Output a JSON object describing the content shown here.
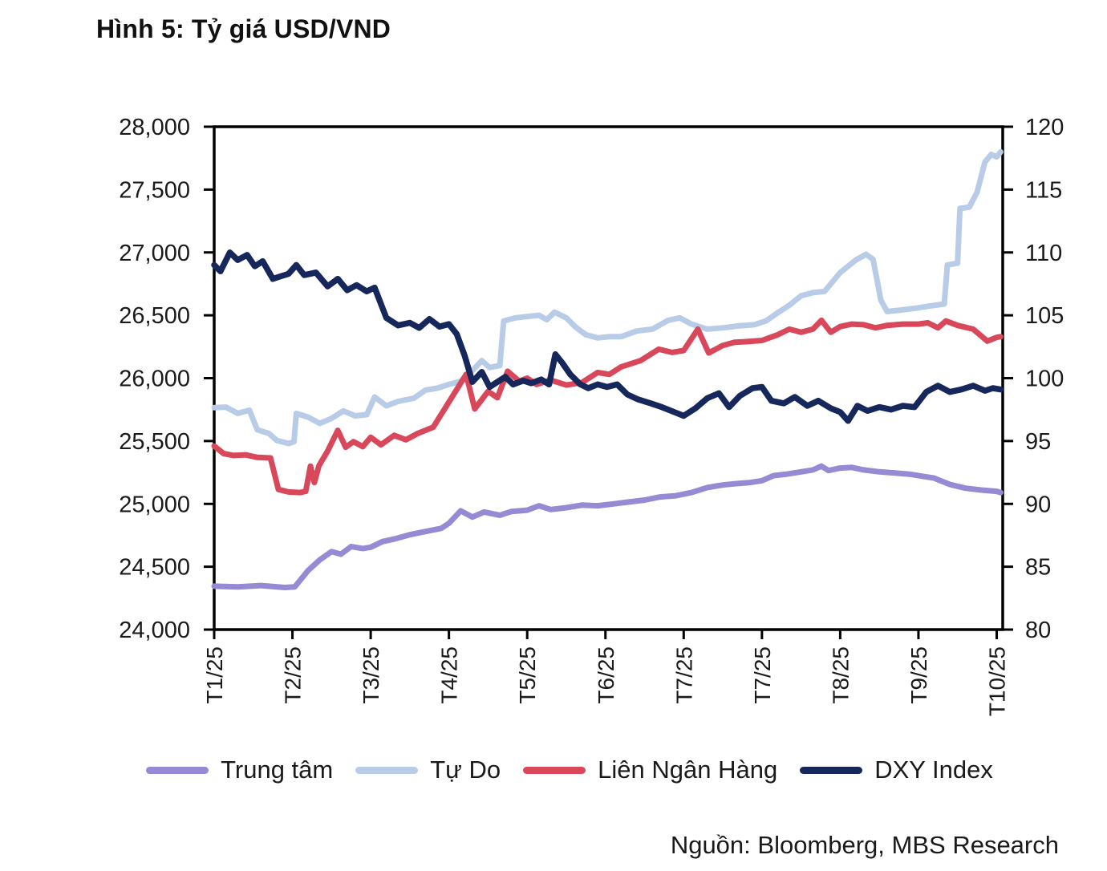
{
  "figure": {
    "title": "Hình 5: Tỷ giá USD/VND",
    "source": "Nguồn: Bloomberg, MBS Research"
  },
  "chart_data": {
    "type": "line",
    "title": "Hình 5: Tỷ giá USD/VND",
    "source": "Nguồn: Bloomberg, MBS Research",
    "grid": false,
    "legend_position": "bottom",
    "x_axis": {
      "tick_labels": [
        "T1/25",
        "T2/25",
        "T3/25",
        "T4/25",
        "T5/25",
        "T6/25",
        "T7/25",
        "T7/25",
        "T8/25",
        "T9/25",
        "T10/25"
      ]
    },
    "y_left": {
      "min": 24000,
      "max": 28000,
      "tick_step": 500,
      "unit": "VND"
    },
    "y_right": {
      "min": 80,
      "max": 120,
      "tick_step": 5,
      "unit": "index"
    },
    "series": [
      {
        "name": "Trung tâm",
        "axis": "left",
        "color": "#9789D3",
        "width": 7,
        "points": [
          [
            0,
            24345
          ],
          [
            0.3,
            24340
          ],
          [
            0.6,
            24350
          ],
          [
            0.9,
            24335
          ],
          [
            1.03,
            24340
          ],
          [
            1.2,
            24470
          ],
          [
            1.35,
            24555
          ],
          [
            1.5,
            24620
          ],
          [
            1.62,
            24600
          ],
          [
            1.75,
            24660
          ],
          [
            1.9,
            24645
          ],
          [
            2.0,
            24655
          ],
          [
            2.15,
            24700
          ],
          [
            2.3,
            24720
          ],
          [
            2.5,
            24755
          ],
          [
            2.7,
            24780
          ],
          [
            2.9,
            24805
          ],
          [
            3.0,
            24845
          ],
          [
            3.15,
            24945
          ],
          [
            3.3,
            24895
          ],
          [
            3.45,
            24935
          ],
          [
            3.65,
            24910
          ],
          [
            3.8,
            24940
          ],
          [
            4.0,
            24950
          ],
          [
            4.15,
            24985
          ],
          [
            4.3,
            24955
          ],
          [
            4.5,
            24970
          ],
          [
            4.7,
            24990
          ],
          [
            4.9,
            24985
          ],
          [
            5.1,
            25000
          ],
          [
            5.3,
            25015
          ],
          [
            5.5,
            25030
          ],
          [
            5.7,
            25055
          ],
          [
            5.9,
            25065
          ],
          [
            6.1,
            25090
          ],
          [
            6.3,
            25130
          ],
          [
            6.5,
            25150
          ],
          [
            6.65,
            25160
          ],
          [
            6.85,
            25170
          ],
          [
            7.0,
            25185
          ],
          [
            7.15,
            25225
          ],
          [
            7.3,
            25235
          ],
          [
            7.5,
            25255
          ],
          [
            7.65,
            25270
          ],
          [
            7.76,
            25300
          ],
          [
            7.85,
            25265
          ],
          [
            8.0,
            25285
          ],
          [
            8.15,
            25290
          ],
          [
            8.3,
            25270
          ],
          [
            8.5,
            25255
          ],
          [
            8.7,
            25245
          ],
          [
            8.9,
            25235
          ],
          [
            9.05,
            25220
          ],
          [
            9.2,
            25205
          ],
          [
            9.4,
            25155
          ],
          [
            9.6,
            25125
          ],
          [
            9.8,
            25110
          ],
          [
            10.0,
            25100
          ],
          [
            10.05,
            25090
          ]
        ]
      },
      {
        "name": "Tự Do",
        "axis": "left",
        "color": "#B9CCE7",
        "width": 7,
        "points": [
          [
            0,
            25765
          ],
          [
            0.15,
            25770
          ],
          [
            0.3,
            25720
          ],
          [
            0.45,
            25745
          ],
          [
            0.55,
            25590
          ],
          [
            0.7,
            25560
          ],
          [
            0.8,
            25505
          ],
          [
            0.95,
            25480
          ],
          [
            1.02,
            25495
          ],
          [
            1.05,
            25720
          ],
          [
            1.2,
            25690
          ],
          [
            1.35,
            25640
          ],
          [
            1.5,
            25680
          ],
          [
            1.65,
            25740
          ],
          [
            1.8,
            25700
          ],
          [
            1.95,
            25710
          ],
          [
            2.05,
            25850
          ],
          [
            2.2,
            25780
          ],
          [
            2.35,
            25815
          ],
          [
            2.55,
            25840
          ],
          [
            2.7,
            25905
          ],
          [
            2.85,
            25920
          ],
          [
            3.0,
            25950
          ],
          [
            3.15,
            25975
          ],
          [
            3.3,
            26060
          ],
          [
            3.42,
            26140
          ],
          [
            3.52,
            26085
          ],
          [
            3.65,
            26100
          ],
          [
            3.7,
            26455
          ],
          [
            3.85,
            26480
          ],
          [
            4.0,
            26490
          ],
          [
            4.15,
            26500
          ],
          [
            4.25,
            26465
          ],
          [
            4.35,
            26525
          ],
          [
            4.5,
            26480
          ],
          [
            4.62,
            26405
          ],
          [
            4.75,
            26345
          ],
          [
            4.9,
            26320
          ],
          [
            5.05,
            26330
          ],
          [
            5.2,
            26330
          ],
          [
            5.4,
            26375
          ],
          [
            5.6,
            26390
          ],
          [
            5.8,
            26460
          ],
          [
            5.95,
            26480
          ],
          [
            6.1,
            26430
          ],
          [
            6.3,
            26390
          ],
          [
            6.5,
            26400
          ],
          [
            6.7,
            26415
          ],
          [
            6.9,
            26425
          ],
          [
            7.05,
            26455
          ],
          [
            7.2,
            26520
          ],
          [
            7.35,
            26580
          ],
          [
            7.5,
            26655
          ],
          [
            7.65,
            26680
          ],
          [
            7.8,
            26690
          ],
          [
            8.0,
            26840
          ],
          [
            8.2,
            26940
          ],
          [
            8.33,
            26985
          ],
          [
            8.42,
            26945
          ],
          [
            8.52,
            26620
          ],
          [
            8.6,
            26530
          ],
          [
            8.75,
            26540
          ],
          [
            8.95,
            26555
          ],
          [
            9.15,
            26575
          ],
          [
            9.33,
            26590
          ],
          [
            9.37,
            26900
          ],
          [
            9.5,
            26915
          ],
          [
            9.53,
            27350
          ],
          [
            9.65,
            27360
          ],
          [
            9.75,
            27480
          ],
          [
            9.85,
            27720
          ],
          [
            9.93,
            27780
          ],
          [
            10.0,
            27760
          ],
          [
            10.05,
            27800
          ]
        ]
      },
      {
        "name": "Liên Ngân Hàng",
        "axis": "left",
        "color": "#D8475A",
        "width": 7,
        "points": [
          [
            0,
            25460
          ],
          [
            0.12,
            25400
          ],
          [
            0.25,
            25385
          ],
          [
            0.4,
            25390
          ],
          [
            0.55,
            25370
          ],
          [
            0.72,
            25365
          ],
          [
            0.82,
            25115
          ],
          [
            0.95,
            25095
          ],
          [
            1.1,
            25090
          ],
          [
            1.17,
            25100
          ],
          [
            1.23,
            25300
          ],
          [
            1.28,
            25170
          ],
          [
            1.34,
            25305
          ],
          [
            1.45,
            25420
          ],
          [
            1.58,
            25585
          ],
          [
            1.68,
            25450
          ],
          [
            1.78,
            25495
          ],
          [
            1.9,
            25455
          ],
          [
            2.0,
            25530
          ],
          [
            2.13,
            25470
          ],
          [
            2.3,
            25545
          ],
          [
            2.45,
            25510
          ],
          [
            2.6,
            25560
          ],
          [
            2.8,
            25610
          ],
          [
            3.0,
            25810
          ],
          [
            3.22,
            26030
          ],
          [
            3.33,
            25755
          ],
          [
            3.5,
            25895
          ],
          [
            3.62,
            25845
          ],
          [
            3.75,
            26055
          ],
          [
            3.9,
            25975
          ],
          [
            4.0,
            26000
          ],
          [
            4.12,
            25950
          ],
          [
            4.3,
            25985
          ],
          [
            4.5,
            25945
          ],
          [
            4.7,
            25965
          ],
          [
            4.9,
            26045
          ],
          [
            5.05,
            26030
          ],
          [
            5.2,
            26090
          ],
          [
            5.45,
            26140
          ],
          [
            5.68,
            26230
          ],
          [
            5.85,
            26205
          ],
          [
            6.0,
            26220
          ],
          [
            6.18,
            26390
          ],
          [
            6.32,
            26200
          ],
          [
            6.5,
            26260
          ],
          [
            6.65,
            26285
          ],
          [
            6.8,
            26290
          ],
          [
            7.0,
            26300
          ],
          [
            7.2,
            26345
          ],
          [
            7.35,
            26390
          ],
          [
            7.5,
            26365
          ],
          [
            7.65,
            26390
          ],
          [
            7.76,
            26460
          ],
          [
            7.88,
            26365
          ],
          [
            8.0,
            26410
          ],
          [
            8.15,
            26430
          ],
          [
            8.3,
            26425
          ],
          [
            8.45,
            26400
          ],
          [
            8.6,
            26420
          ],
          [
            8.8,
            26430
          ],
          [
            9.0,
            26430
          ],
          [
            9.12,
            26440
          ],
          [
            9.25,
            26400
          ],
          [
            9.35,
            26455
          ],
          [
            9.5,
            26420
          ],
          [
            9.7,
            26390
          ],
          [
            9.88,
            26295
          ],
          [
            10.0,
            26325
          ],
          [
            10.05,
            26330
          ]
        ]
      },
      {
        "name": "DXY Index",
        "axis": "right",
        "color": "#16275C",
        "width": 7.5,
        "points": [
          [
            0,
            109.0
          ],
          [
            0.08,
            108.5
          ],
          [
            0.2,
            110.0
          ],
          [
            0.3,
            109.4
          ],
          [
            0.42,
            109.8
          ],
          [
            0.52,
            108.9
          ],
          [
            0.62,
            109.3
          ],
          [
            0.75,
            107.9
          ],
          [
            0.85,
            108.1
          ],
          [
            0.95,
            108.3
          ],
          [
            1.05,
            109.0
          ],
          [
            1.15,
            108.2
          ],
          [
            1.3,
            108.4
          ],
          [
            1.45,
            107.3
          ],
          [
            1.58,
            107.9
          ],
          [
            1.7,
            107.0
          ],
          [
            1.82,
            107.4
          ],
          [
            1.95,
            106.9
          ],
          [
            2.05,
            107.2
          ],
          [
            2.2,
            104.8
          ],
          [
            2.35,
            104.2
          ],
          [
            2.5,
            104.4
          ],
          [
            2.62,
            104.0
          ],
          [
            2.75,
            104.7
          ],
          [
            2.88,
            104.1
          ],
          [
            3.0,
            104.3
          ],
          [
            3.1,
            103.5
          ],
          [
            3.2,
            101.8
          ],
          [
            3.3,
            99.7
          ],
          [
            3.42,
            100.5
          ],
          [
            3.52,
            99.3
          ],
          [
            3.62,
            99.7
          ],
          [
            3.72,
            100.1
          ],
          [
            3.82,
            99.5
          ],
          [
            3.95,
            99.8
          ],
          [
            4.05,
            99.6
          ],
          [
            4.18,
            99.9
          ],
          [
            4.28,
            99.5
          ],
          [
            4.36,
            101.9
          ],
          [
            4.45,
            101.2
          ],
          [
            4.55,
            100.3
          ],
          [
            4.68,
            99.5
          ],
          [
            4.78,
            99.2
          ],
          [
            4.9,
            99.5
          ],
          [
            5.02,
            99.3
          ],
          [
            5.15,
            99.5
          ],
          [
            5.28,
            98.7
          ],
          [
            5.42,
            98.3
          ],
          [
            5.58,
            98.0
          ],
          [
            5.72,
            97.7
          ],
          [
            5.88,
            97.3
          ],
          [
            6.0,
            97.0
          ],
          [
            6.15,
            97.6
          ],
          [
            6.3,
            98.4
          ],
          [
            6.45,
            98.8
          ],
          [
            6.58,
            97.7
          ],
          [
            6.72,
            98.6
          ],
          [
            6.88,
            99.2
          ],
          [
            7.0,
            99.3
          ],
          [
            7.12,
            98.2
          ],
          [
            7.28,
            98.0
          ],
          [
            7.42,
            98.5
          ],
          [
            7.58,
            97.8
          ],
          [
            7.72,
            98.2
          ],
          [
            7.88,
            97.6
          ],
          [
            8.0,
            97.3
          ],
          [
            8.1,
            96.6
          ],
          [
            8.22,
            97.8
          ],
          [
            8.35,
            97.4
          ],
          [
            8.5,
            97.7
          ],
          [
            8.65,
            97.5
          ],
          [
            8.8,
            97.8
          ],
          [
            8.95,
            97.7
          ],
          [
            9.1,
            98.9
          ],
          [
            9.25,
            99.4
          ],
          [
            9.4,
            98.9
          ],
          [
            9.55,
            99.1
          ],
          [
            9.7,
            99.4
          ],
          [
            9.85,
            99.0
          ],
          [
            9.95,
            99.2
          ],
          [
            10.05,
            99.1
          ]
        ]
      }
    ]
  }
}
